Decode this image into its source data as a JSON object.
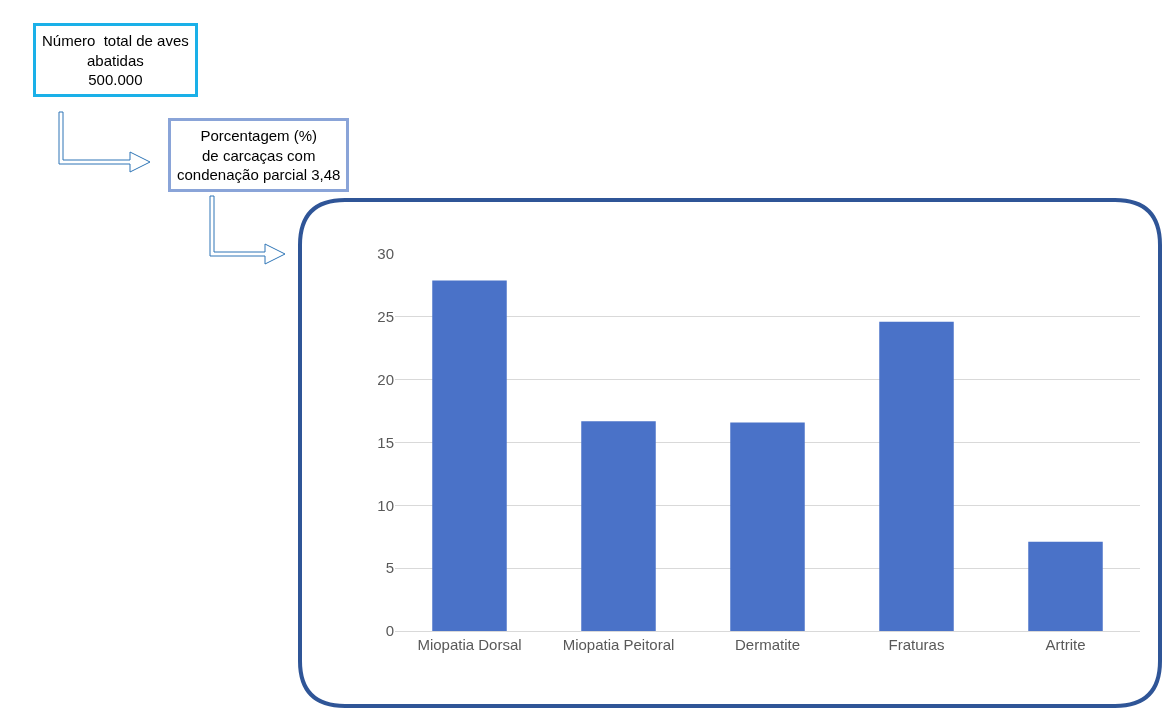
{
  "chart_data": {
    "type": "bar",
    "categories": [
      "Miopatia Dorsal",
      "Miopatia Peitoral",
      "Dermatite",
      "Fraturas",
      "Artrite"
    ],
    "values": [
      27.9,
      16.7,
      16.6,
      24.6,
      7.1
    ],
    "color": "#4a72c8",
    "ylim": [
      0,
      30
    ],
    "yticks": [
      0,
      5,
      10,
      15,
      20,
      25,
      30
    ],
    "grid": "y",
    "legend": false,
    "annotations": [
      "Número  total de aves\nabatidas\n500.000",
      "Porcentagem (%)\nde carcaças com\ncondenação parcial 3,48"
    ]
  }
}
